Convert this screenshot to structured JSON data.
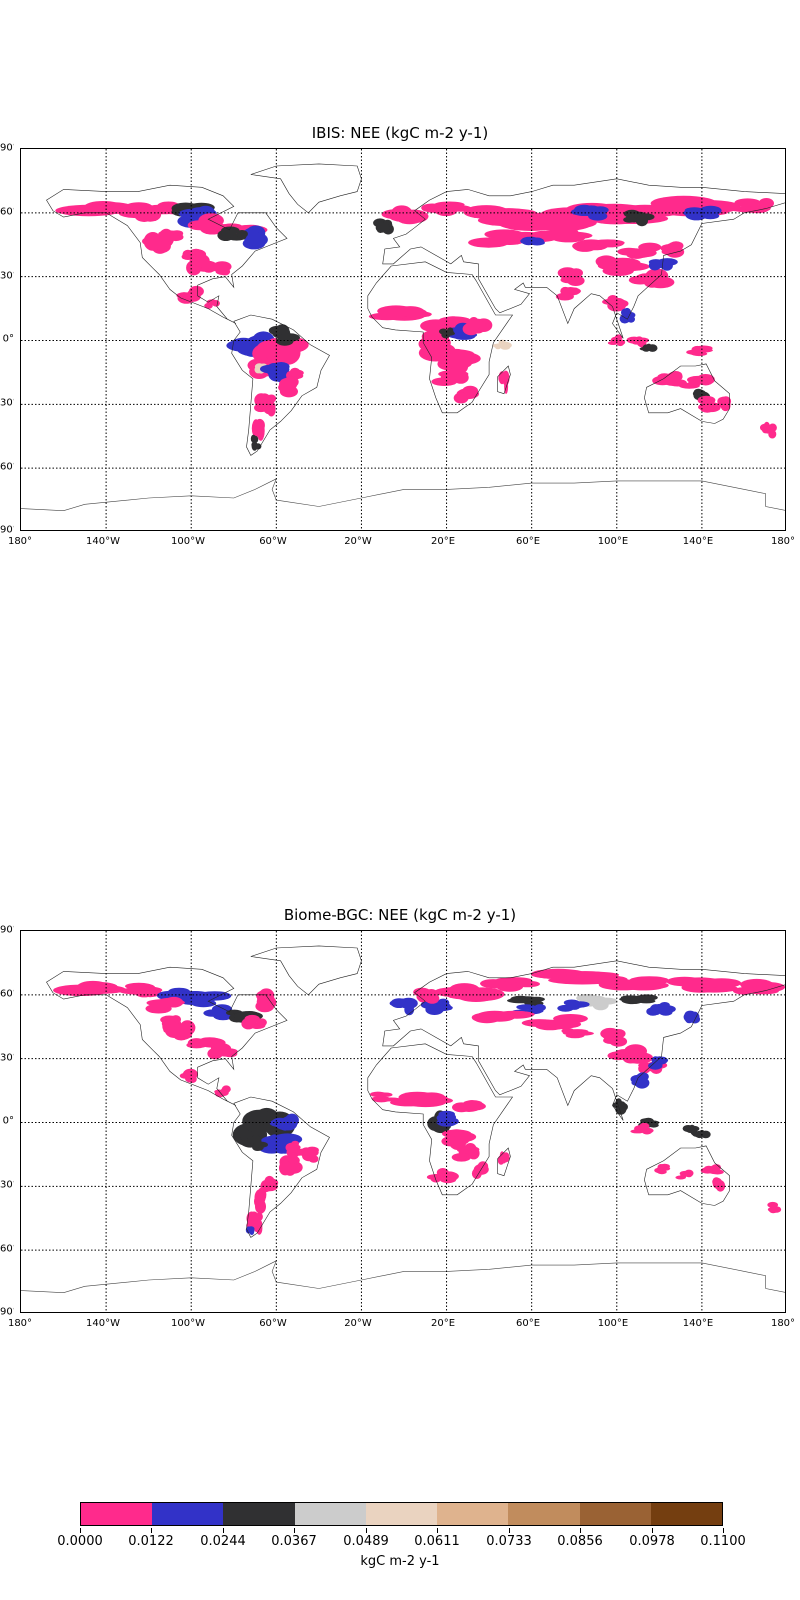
{
  "panels": [
    {
      "title": "IBIS: NEE (kgC m-2 y-1)",
      "lat_labels": [
        "90°N",
        "60°N",
        "30°N",
        "0°",
        "30°S",
        "60°S",
        "90°S"
      ],
      "lon_labels": [
        "180°",
        "140°W",
        "100°W",
        "60°W",
        "20°W",
        "20°E",
        "60°E",
        "100°E",
        "140°E",
        "180°"
      ]
    },
    {
      "title": "Biome-BGC: NEE (kgC m-2 y-1)",
      "lat_labels": [
        "90°N",
        "60°N",
        "30°N",
        "0°",
        "30°S",
        "60°S",
        "90°S"
      ],
      "lon_labels": [
        "180°",
        "140°W",
        "100°W",
        "60°W",
        "20°W",
        "20°E",
        "60°E",
        "100°E",
        "140°E",
        "180°"
      ]
    }
  ],
  "colorbar": {
    "unit_label": "kgC m-2 y-1",
    "tick_labels": [
      "0.0000",
      "0.0122",
      "0.0244",
      "0.0367",
      "0.0489",
      "0.0611",
      "0.0733",
      "0.0856",
      "0.0978",
      "0.1100"
    ],
    "colors": [
      "#ff2a8c",
      "#3232c8",
      "#303032",
      "#cccccc",
      "#ead3c0",
      "#dfb38e",
      "#c18c5d",
      "#9a6234",
      "#743e10"
    ]
  }
}
